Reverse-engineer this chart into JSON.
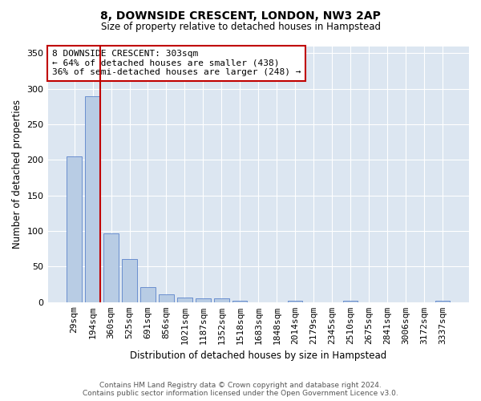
{
  "title": "8, DOWNSIDE CRESCENT, LONDON, NW3 2AP",
  "subtitle": "Size of property relative to detached houses in Hampstead",
  "xlabel": "Distribution of detached houses by size in Hampstead",
  "ylabel": "Number of detached properties",
  "categories": [
    "29sqm",
    "194sqm",
    "360sqm",
    "525sqm",
    "691sqm",
    "856sqm",
    "1021sqm",
    "1187sqm",
    "1352sqm",
    "1518sqm",
    "1683sqm",
    "1848sqm",
    "2014sqm",
    "2179sqm",
    "2345sqm",
    "2510sqm",
    "2675sqm",
    "2841sqm",
    "3006sqm",
    "3172sqm",
    "3337sqm"
  ],
  "bar_heights": [
    205,
    290,
    97,
    60,
    21,
    11,
    6,
    5,
    5,
    2,
    0,
    0,
    2,
    0,
    0,
    2,
    0,
    0,
    0,
    0,
    2
  ],
  "bar_color": "#b8cce4",
  "bar_edge_color": "#4472c4",
  "vline_x_index": 1,
  "vline_color": "#c00000",
  "annotation_text": "8 DOWNSIDE CRESCENT: 303sqm\n← 64% of detached houses are smaller (438)\n36% of semi-detached houses are larger (248) →",
  "annotation_box_color": "#ffffff",
  "annotation_box_edge": "#c00000",
  "ylim": [
    0,
    360
  ],
  "yticks": [
    0,
    50,
    100,
    150,
    200,
    250,
    300,
    350
  ],
  "bg_color": "#dce6f1",
  "footer_line1": "Contains HM Land Registry data © Crown copyright and database right 2024.",
  "footer_line2": "Contains public sector information licensed under the Open Government Licence v3.0."
}
